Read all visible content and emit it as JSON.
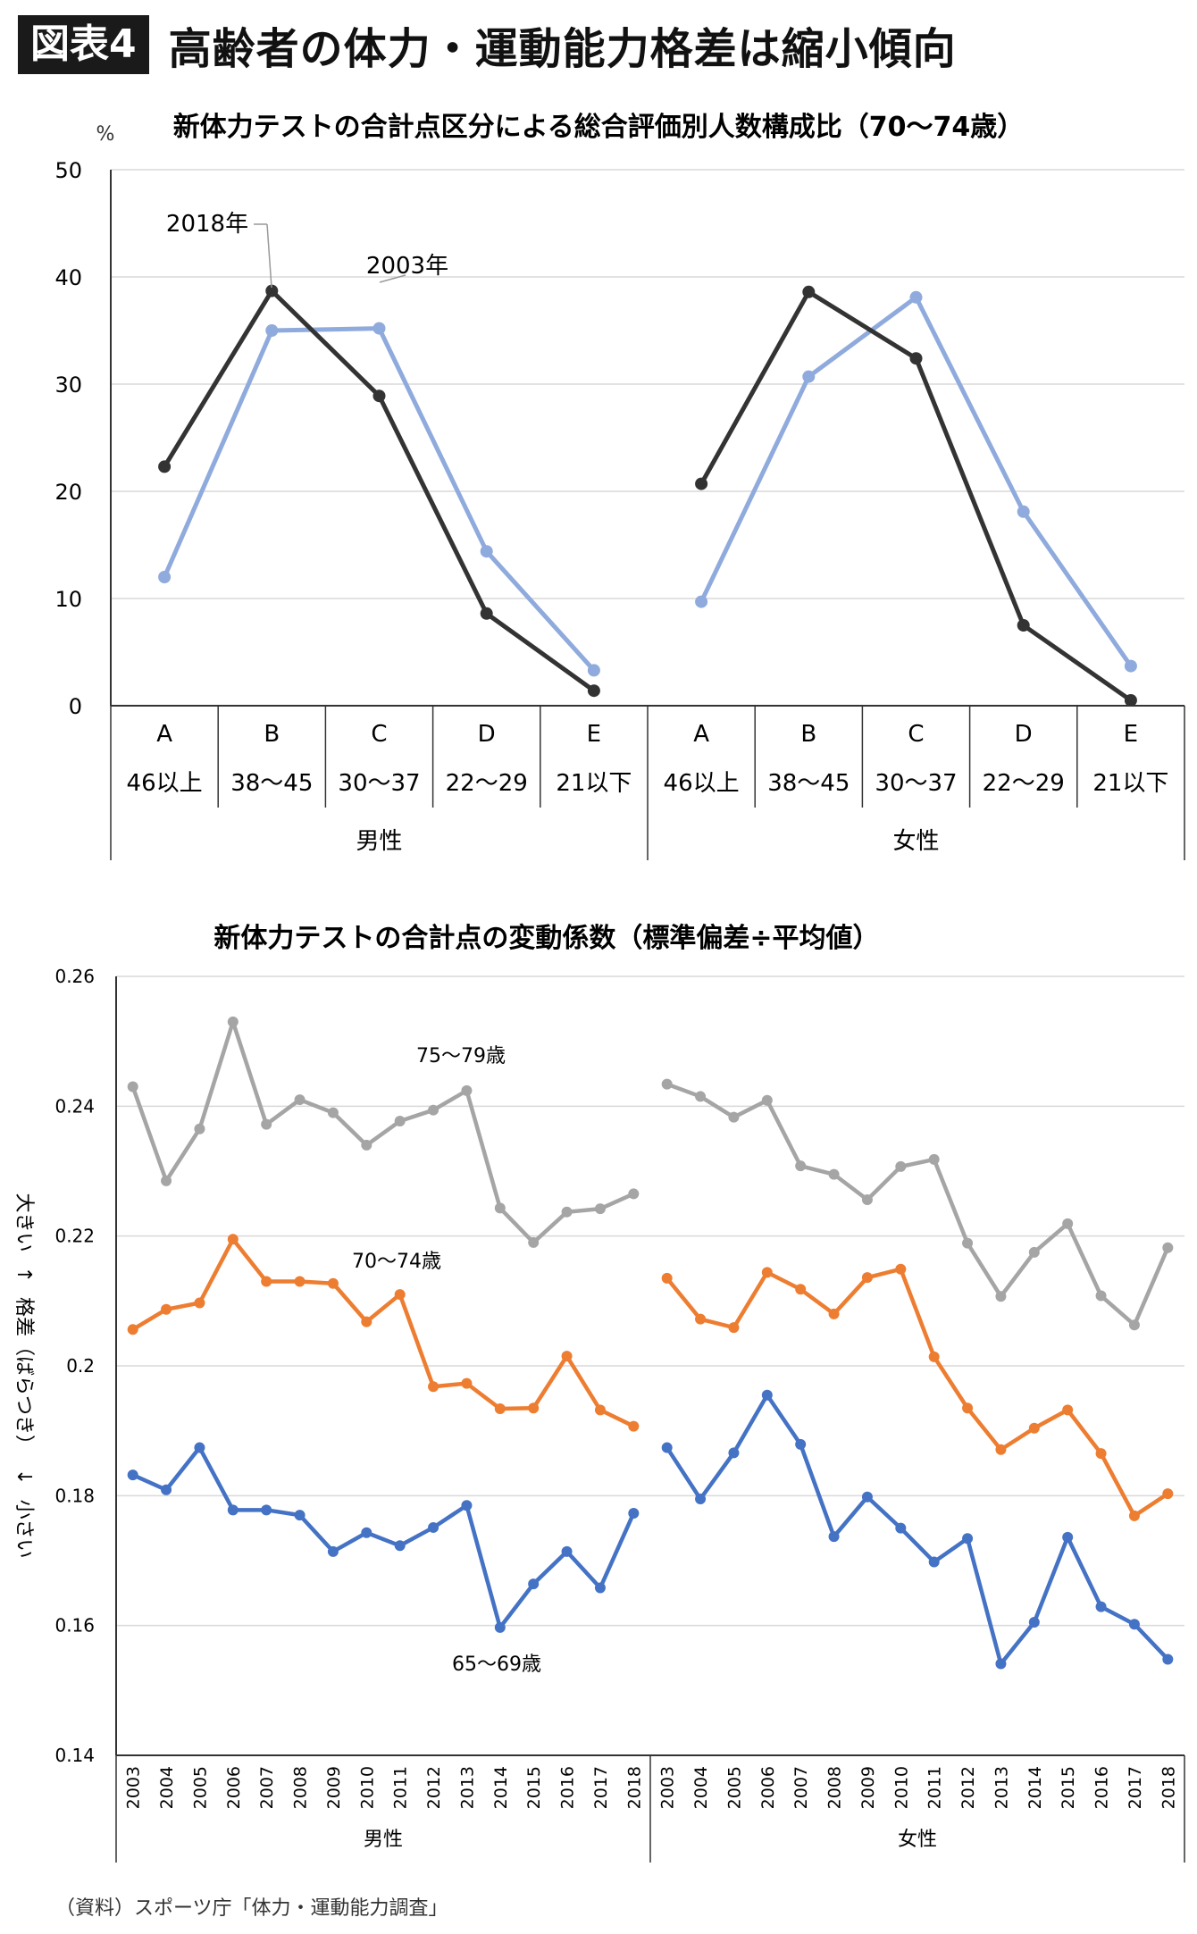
{
  "header": {
    "badge": "図表4",
    "title": "高齢者の体力・運動能力格差は縮小傾向"
  },
  "source_note": "（資料）スポーツ庁「体力・運動能力調査」",
  "chart_data": [
    {
      "type": "line",
      "title": "新体力テストの合計点区分による総合評価別人数構成比（70〜74歳）",
      "yunit": "%",
      "ylim": [
        0,
        50
      ],
      "yticks": [
        0,
        10,
        20,
        30,
        40,
        50
      ],
      "grid": true,
      "panels": [
        {
          "name": "男性",
          "categories": [
            "A",
            "B",
            "C",
            "D",
            "E"
          ],
          "sublabels": [
            "46以上",
            "38〜45",
            "30〜37",
            "22〜29",
            "21以下"
          ]
        },
        {
          "name": "女性",
          "categories": [
            "A",
            "B",
            "C",
            "D",
            "E"
          ],
          "sublabels": [
            "46以上",
            "38〜45",
            "30〜37",
            "22〜29",
            "21以下"
          ]
        }
      ],
      "series": [
        {
          "name": "2018年",
          "color": "#333333",
          "values": [
            [
              22.3,
              38.7,
              28.9,
              8.6,
              1.4
            ],
            [
              20.7,
              38.6,
              32.4,
              7.5,
              0.5
            ]
          ]
        },
        {
          "name": "2003年",
          "color": "#8faadc",
          "values": [
            [
              12.0,
              35.0,
              35.2,
              14.4,
              3.3
            ],
            [
              9.7,
              30.7,
              38.1,
              18.1,
              3.7
            ]
          ]
        }
      ]
    },
    {
      "type": "line",
      "title": "新体力テストの合計点の変動係数（標準偏差÷平均値）",
      "ylim": [
        0.14,
        0.26
      ],
      "yticks": [
        "0.14",
        "0.16",
        "0.18",
        "0.2",
        "0.22",
        "0.24",
        "0.26"
      ],
      "yaxis_text": [
        "大きい",
        "↑",
        "格差（ばらつき）",
        "↓",
        "小さい"
      ],
      "grid": true,
      "years": [
        "2003",
        "2004",
        "2005",
        "2006",
        "2007",
        "2008",
        "2009",
        "2010",
        "2011",
        "2012",
        "2013",
        "2014",
        "2015",
        "2016",
        "2017",
        "2018"
      ],
      "panels": [
        "男性",
        "女性"
      ],
      "series": [
        {
          "name": "75〜79歳",
          "color": "#a5a5a5",
          "male": [
            0.243,
            0.2285,
            0.2365,
            0.253,
            0.2372,
            0.241,
            0.239,
            0.234,
            0.2377,
            0.2394,
            0.2424,
            0.2243,
            0.219,
            0.2237,
            0.2242,
            0.2265
          ],
          "female": [
            0.2434,
            0.2415,
            0.2383,
            0.2409,
            0.2308,
            0.2295,
            0.2256,
            0.2307,
            0.2318,
            0.2189,
            0.2107,
            0.2175,
            0.2219,
            0.2108,
            0.2063,
            0.2182
          ]
        },
        {
          "name": "70〜74歳",
          "color": "#ed7d31",
          "male": [
            0.2056,
            0.2087,
            0.2097,
            0.2195,
            0.213,
            0.213,
            0.2127,
            0.2068,
            0.211,
            0.1968,
            0.1973,
            0.1934,
            0.1935,
            0.2015,
            0.1932,
            0.1907
          ],
          "female": [
            0.2135,
            0.2072,
            0.2059,
            0.2144,
            0.2118,
            0.208,
            0.2136,
            0.2149,
            0.2014,
            0.1935,
            0.1871,
            0.1904,
            0.1932,
            0.1865,
            0.1769,
            0.1803
          ]
        },
        {
          "name": "65〜69歳",
          "color": "#4472c4",
          "male": [
            0.1832,
            0.1809,
            0.1874,
            0.1778,
            0.1778,
            0.177,
            0.1714,
            0.1743,
            0.1723,
            0.1751,
            0.1785,
            0.1597,
            0.1664,
            0.1714,
            0.1658,
            0.1773
          ],
          "female": [
            0.1874,
            0.1795,
            0.1866,
            0.1955,
            0.1879,
            0.1737,
            0.1798,
            0.175,
            0.1698,
            0.1734,
            0.1541,
            0.1605,
            0.1736,
            0.1629,
            0.1602,
            0.1548
          ]
        }
      ]
    }
  ]
}
